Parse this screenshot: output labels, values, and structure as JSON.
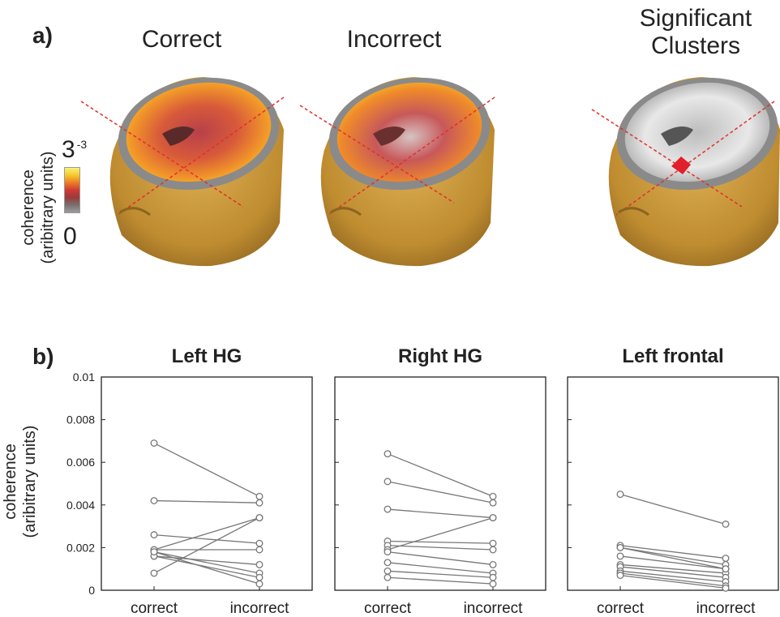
{
  "panel_a": {
    "label": "a)",
    "titles": [
      "Correct",
      "Incorrect",
      "Significant\nClusters"
    ],
    "colorbar": {
      "max_base": "3",
      "max_exp": "-3",
      "min": "0",
      "label_line1": "coherence",
      "label_line2": "(aribitrary units)"
    }
  },
  "panel_b": {
    "label": "b)",
    "ylabel_line1": "coherence",
    "ylabel_line2": "(aribitrary units)"
  },
  "chart_data": [
    {
      "type": "line",
      "title": "Left HG",
      "categories": [
        "correct",
        "incorrect"
      ],
      "ylim": [
        0,
        0.01
      ],
      "yticks": [
        "0",
        "0.002",
        "0.004",
        "0.006",
        "0.008",
        "0.01"
      ],
      "ylabel": "coherence (aribitrary units)",
      "pairs": [
        [
          0.0069,
          0.0044
        ],
        [
          0.0042,
          0.0041
        ],
        [
          0.0026,
          0.0022
        ],
        [
          0.0019,
          0.0019
        ],
        [
          0.0019,
          0.0034
        ],
        [
          0.0018,
          0.0008
        ],
        [
          0.0016,
          0.0012
        ],
        [
          0.0016,
          0.0006
        ],
        [
          0.0008,
          0.0034
        ],
        [
          0.0018,
          0.0003
        ]
      ]
    },
    {
      "type": "line",
      "title": "Right HG",
      "categories": [
        "correct",
        "incorrect"
      ],
      "ylim": [
        0,
        0.01
      ],
      "pairs": [
        [
          0.0064,
          0.0044
        ],
        [
          0.0051,
          0.0041
        ],
        [
          0.0038,
          0.0034
        ],
        [
          0.0023,
          0.0022
        ],
        [
          0.0021,
          0.0019
        ],
        [
          0.0019,
          0.0034
        ],
        [
          0.0018,
          0.0012
        ],
        [
          0.0013,
          0.0008
        ],
        [
          0.0009,
          0.0006
        ],
        [
          0.0006,
          0.0003
        ]
      ]
    },
    {
      "type": "line",
      "title": "Left frontal",
      "categories": [
        "correct",
        "incorrect"
      ],
      "ylim": [
        0,
        0.01
      ],
      "pairs": [
        [
          0.0045,
          0.0031
        ],
        [
          0.0021,
          0.0015
        ],
        [
          0.002,
          0.0012
        ],
        [
          0.0016,
          0.001
        ],
        [
          0.0012,
          0.0008
        ],
        [
          0.0011,
          0.0006
        ],
        [
          0.0009,
          0.0004
        ],
        [
          0.0008,
          0.0002
        ],
        [
          0.0007,
          0.0001
        ],
        [
          0.002,
          0.001
        ]
      ]
    }
  ],
  "colors": {
    "line": "#777777",
    "marker_edge": "#777777",
    "head_skin": "#c99a3c",
    "crosshair": "#e0302a",
    "cluster": "#e0202a"
  }
}
